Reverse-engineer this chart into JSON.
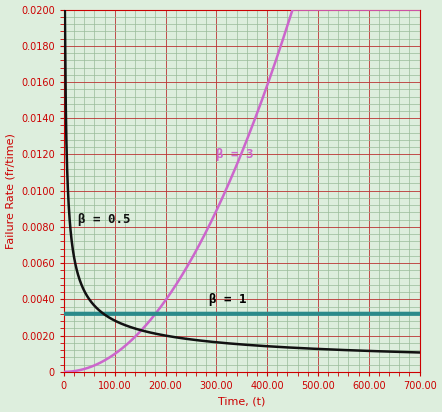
{
  "title": "",
  "xlabel": "Time, (t)",
  "ylabel": "Failure Rate (fr/time)",
  "xlim": [
    0,
    700
  ],
  "ylim": [
    0,
    0.02
  ],
  "yticks": [
    0,
    0.002,
    0.004,
    0.006,
    0.008,
    0.01,
    0.012,
    0.014,
    0.016,
    0.018,
    0.02
  ],
  "xticks": [
    0,
    100,
    200,
    300,
    400,
    500,
    600,
    700
  ],
  "xtick_labels": [
    "0",
    "100.00",
    "200.00",
    "300.00",
    "400.00",
    "500.00",
    "600.00",
    "700.00"
  ],
  "ytick_labels": [
    "0",
    "0.0020",
    "0.0040",
    "0.0060",
    "0.0080",
    "0.0100",
    "0.0120",
    "0.0140",
    "0.0160",
    "0.0180",
    "0.0200"
  ],
  "background_color": "#ddeedd",
  "plot_bg_color": "#ddeedd",
  "grid_major_color_red": "#bb3333",
  "grid_minor_color_green": "#99bb99",
  "beta05_color": "#111111",
  "beta1_color": "#2a8a8a",
  "beta3_color": "#cc66cc",
  "eta": 312,
  "label_beta05": "β = 0.5",
  "label_beta1": "β = 1",
  "label_beta3": "β = 3",
  "label_fontsize": 9,
  "axis_label_color": "#cc0000",
  "tick_color": "#cc0000",
  "tick_fontsize": 7,
  "axis_label_fontsize": 8,
  "linewidth_beta05": 1.8,
  "linewidth_beta1": 3.0,
  "linewidth_beta3": 1.8
}
